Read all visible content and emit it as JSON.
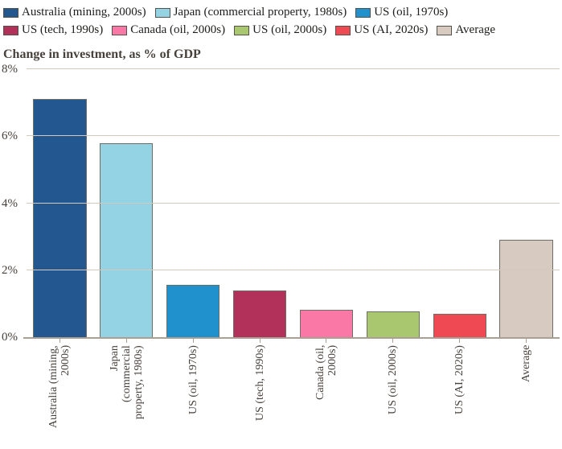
{
  "chart_data": {
    "type": "bar",
    "title": "Change in investment, as % of GDP",
    "categories": [
      "Australia (mining, 2000s)",
      "Japan (commercial property, 1980s)",
      "US (oil, 1970s)",
      "US (tech, 1990s)",
      "Canada (oil, 2000s)",
      "US (oil, 2000s)",
      "US (AI, 2020s)",
      "Average"
    ],
    "values": [
      7.1,
      5.8,
      1.55,
      1.4,
      0.82,
      0.78,
      0.7,
      2.9
    ],
    "colors": [
      "#22578f",
      "#93d3e3",
      "#2191ce",
      "#b2315a",
      "#fa78a6",
      "#a8c76f",
      "#ef4a53",
      "#d7cbc1"
    ],
    "xtick_display": [
      "Australia (mining,\n2000s)",
      "Japan\n(commercial\nproperty, 1980s)",
      "US (oil, 1970s)",
      "US (tech, 1990s)",
      "Canada (oil,\n2000s)",
      "US (oil, 2000s)",
      "US (AI, 2020s)",
      "Average"
    ],
    "xlabel": "",
    "ylabel": "Change in investment, as % of GDP",
    "ylim": [
      0,
      8
    ],
    "yticks": [
      {
        "value": 0,
        "label": "0%"
      },
      {
        "value": 2,
        "label": "2%"
      },
      {
        "value": 4,
        "label": "4%"
      },
      {
        "value": 6,
        "label": "6%"
      },
      {
        "value": 8,
        "label": "8%"
      }
    ],
    "grid": true,
    "legend_position": "top"
  },
  "legend": {
    "rows": [
      [
        {
          "label": "Australia (mining, 2000s)",
          "color": "#22578f"
        },
        {
          "label": "Japan (commercial property, 1980s)",
          "color": "#93d3e3"
        },
        {
          "label": "US (oil, 1970s)",
          "color": "#2191ce"
        }
      ],
      [
        {
          "label": "US (tech, 1990s)",
          "color": "#b2315a"
        },
        {
          "label": "Canada (oil, 2000s)",
          "color": "#fa78a6"
        },
        {
          "label": "US (oil, 2000s)",
          "color": "#a8c76f"
        },
        {
          "label": "US (AI, 2020s)",
          "color": "#ef4a53"
        },
        {
          "label": "Average",
          "color": "#d7cbc1"
        }
      ]
    ]
  },
  "colors": {
    "grid_line": "#d3c9bd",
    "axis_line": "#ab9f93",
    "bar_border": "#6f6e66",
    "text": "#47413c",
    "legend_text": "#1e1d1b",
    "background": "#ffffff"
  }
}
